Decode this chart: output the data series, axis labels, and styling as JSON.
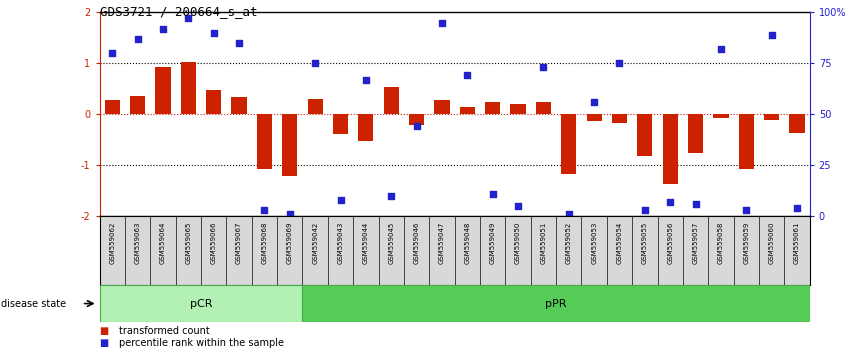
{
  "title": "GDS3721 / 200664_s_at",
  "samples": [
    "GSM559062",
    "GSM559063",
    "GSM559064",
    "GSM559065",
    "GSM559066",
    "GSM559067",
    "GSM559068",
    "GSM559069",
    "GSM559042",
    "GSM559043",
    "GSM559044",
    "GSM559045",
    "GSM559046",
    "GSM559047",
    "GSM559048",
    "GSM559049",
    "GSM559050",
    "GSM559051",
    "GSM559052",
    "GSM559053",
    "GSM559054",
    "GSM559055",
    "GSM559056",
    "GSM559057",
    "GSM559058",
    "GSM559059",
    "GSM559060",
    "GSM559061"
  ],
  "red_bars": [
    0.27,
    0.35,
    0.93,
    1.02,
    0.47,
    0.33,
    -1.08,
    -1.22,
    0.3,
    -0.38,
    -0.52,
    0.53,
    -0.22,
    0.27,
    0.14,
    0.24,
    0.2,
    0.24,
    -1.18,
    -0.13,
    -0.17,
    -0.82,
    -1.37,
    -0.77,
    -0.07,
    -1.07,
    -0.11,
    -0.37
  ],
  "blue_dots_pct": [
    80,
    87,
    92,
    97,
    90,
    85,
    3,
    1,
    75,
    8,
    67,
    10,
    44,
    95,
    69,
    11,
    5,
    73,
    1,
    56,
    75,
    3,
    7,
    6,
    82,
    3,
    89,
    4
  ],
  "pCR_count": 8,
  "pPR_count": 20,
  "ylim": [
    -2,
    2
  ],
  "bar_color": "#cc2200",
  "dot_color": "#2222cc",
  "pCR_color": "#b3f0b3",
  "pPR_color": "#55cc55",
  "tick_bg_color": "#cccccc",
  "bg_color": "#ffffff"
}
